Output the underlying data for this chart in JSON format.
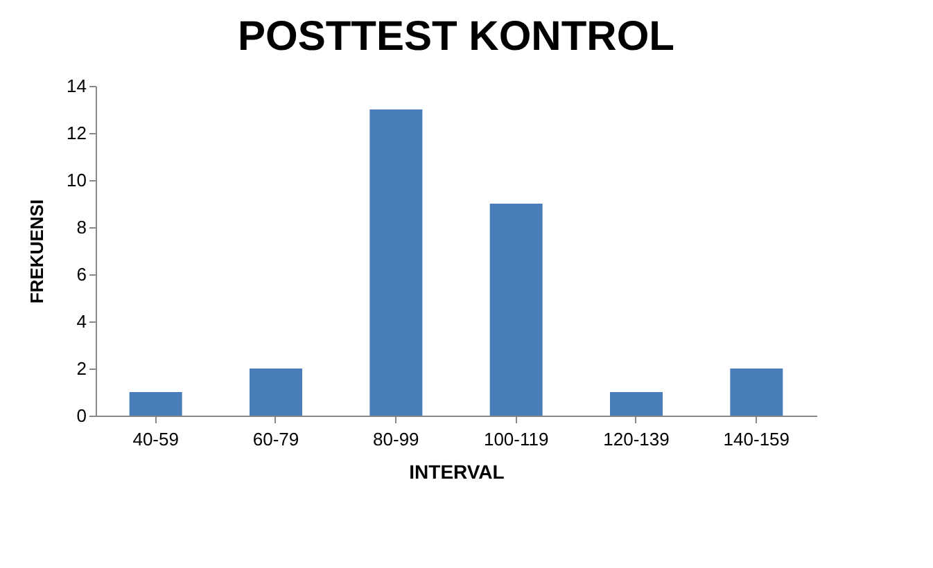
{
  "chart_data": {
    "type": "bar",
    "title": "POSTTEST KONTROL",
    "xlabel": "INTERVAL",
    "ylabel": "FREKUENSI",
    "categories": [
      "40-59",
      "60-79",
      "80-99",
      "100-119",
      "120-139",
      "140-159"
    ],
    "values": [
      1,
      2,
      13,
      9,
      1,
      2
    ],
    "color": "#4a7ebb",
    "ylim": [
      0,
      14
    ],
    "yticks": [
      0,
      2,
      4,
      6,
      8,
      10,
      12,
      14
    ],
    "grid": false
  }
}
